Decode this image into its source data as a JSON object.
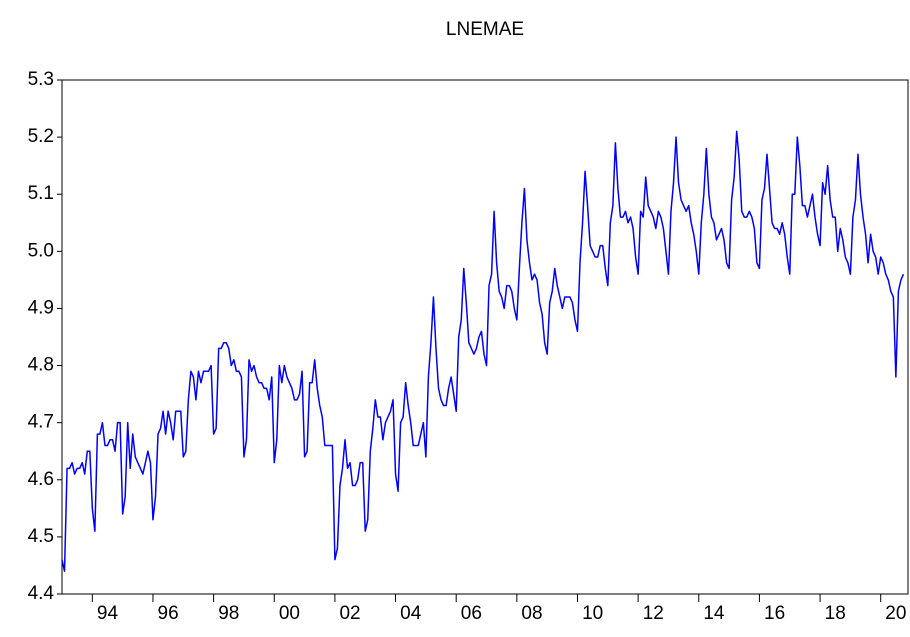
{
  "chart_data": {
    "type": "line",
    "title": "LNEMAE",
    "x": [
      1993,
      1993.083,
      1993.167,
      1993.25,
      1993.333,
      1993.417,
      1993.5,
      1993.583,
      1993.667,
      1993.75,
      1993.833,
      1993.917,
      1994,
      1994.083,
      1994.167,
      1994.25,
      1994.333,
      1994.417,
      1994.5,
      1994.583,
      1994.667,
      1994.75,
      1994.833,
      1994.917,
      1995,
      1995.083,
      1995.167,
      1995.25,
      1995.333,
      1995.417,
      1995.5,
      1995.583,
      1995.667,
      1995.75,
      1995.833,
      1995.917,
      1996,
      1996.083,
      1996.167,
      1996.25,
      1996.333,
      1996.417,
      1996.5,
      1996.583,
      1996.667,
      1996.75,
      1996.833,
      1996.917,
      1997,
      1997.083,
      1997.167,
      1997.25,
      1997.333,
      1997.417,
      1997.5,
      1997.583,
      1997.667,
      1997.75,
      1997.833,
      1997.917,
      1998,
      1998.083,
      1998.167,
      1998.25,
      1998.333,
      1998.417,
      1998.5,
      1998.583,
      1998.667,
      1998.75,
      1998.833,
      1998.917,
      1999,
      1999.083,
      1999.167,
      1999.25,
      1999.333,
      1999.417,
      1999.5,
      1999.583,
      1999.667,
      1999.75,
      1999.833,
      1999.917,
      2000,
      2000.083,
      2000.167,
      2000.25,
      2000.333,
      2000.417,
      2000.5,
      2000.583,
      2000.667,
      2000.75,
      2000.833,
      2000.917,
      2001,
      2001.083,
      2001.167,
      2001.25,
      2001.333,
      2001.417,
      2001.5,
      2001.583,
      2001.667,
      2001.75,
      2001.833,
      2001.917,
      2002,
      2002.083,
      2002.167,
      2002.25,
      2002.333,
      2002.417,
      2002.5,
      2002.583,
      2002.667,
      2002.75,
      2002.833,
      2002.917,
      2003,
      2003.083,
      2003.167,
      2003.25,
      2003.333,
      2003.417,
      2003.5,
      2003.583,
      2003.667,
      2003.75,
      2003.833,
      2003.917,
      2004,
      2004.083,
      2004.167,
      2004.25,
      2004.333,
      2004.417,
      2004.5,
      2004.583,
      2004.667,
      2004.75,
      2004.833,
      2004.917,
      2005,
      2005.083,
      2005.167,
      2005.25,
      2005.333,
      2005.417,
      2005.5,
      2005.583,
      2005.667,
      2005.75,
      2005.833,
      2005.917,
      2006,
      2006.083,
      2006.167,
      2006.25,
      2006.333,
      2006.417,
      2006.5,
      2006.583,
      2006.667,
      2006.75,
      2006.833,
      2006.917,
      2007,
      2007.083,
      2007.167,
      2007.25,
      2007.333,
      2007.417,
      2007.5,
      2007.583,
      2007.667,
      2007.75,
      2007.833,
      2007.917,
      2008,
      2008.083,
      2008.167,
      2008.25,
      2008.333,
      2008.417,
      2008.5,
      2008.583,
      2008.667,
      2008.75,
      2008.833,
      2008.917,
      2009,
      2009.083,
      2009.167,
      2009.25,
      2009.333,
      2009.417,
      2009.5,
      2009.583,
      2009.667,
      2009.75,
      2009.833,
      2009.917,
      2010,
      2010.083,
      2010.167,
      2010.25,
      2010.333,
      2010.417,
      2010.5,
      2010.583,
      2010.667,
      2010.75,
      2010.833,
      2010.917,
      2011,
      2011.083,
      2011.167,
      2011.25,
      2011.333,
      2011.417,
      2011.5,
      2011.583,
      2011.667,
      2011.75,
      2011.833,
      2011.917,
      2012,
      2012.083,
      2012.167,
      2012.25,
      2012.333,
      2012.417,
      2012.5,
      2012.583,
      2012.667,
      2012.75,
      2012.833,
      2012.917,
      2013,
      2013.083,
      2013.167,
      2013.25,
      2013.333,
      2013.417,
      2013.5,
      2013.583,
      2013.667,
      2013.75,
      2013.833,
      2013.917,
      2014,
      2014.083,
      2014.167,
      2014.25,
      2014.333,
      2014.417,
      2014.5,
      2014.583,
      2014.667,
      2014.75,
      2014.833,
      2014.917,
      2015,
      2015.083,
      2015.167,
      2015.25,
      2015.333,
      2015.417,
      2015.5,
      2015.583,
      2015.667,
      2015.75,
      2015.833,
      2015.917,
      2016,
      2016.083,
      2016.167,
      2016.25,
      2016.333,
      2016.417,
      2016.5,
      2016.583,
      2016.667,
      2016.75,
      2016.833,
      2016.917,
      2017,
      2017.083,
      2017.167,
      2017.25,
      2017.333,
      2017.417,
      2017.5,
      2017.583,
      2017.667,
      2017.75,
      2017.833,
      2017.917,
      2018,
      2018.083,
      2018.167,
      2018.25,
      2018.333,
      2018.417,
      2018.5,
      2018.583,
      2018.667,
      2018.75,
      2018.833,
      2018.917,
      2019,
      2019.083,
      2019.167,
      2019.25,
      2019.333,
      2019.417,
      2019.5,
      2019.583,
      2019.667,
      2019.75,
      2019.833,
      2019.917,
      2020,
      2020.083,
      2020.167,
      2020.25,
      2020.333,
      2020.417,
      2020.5,
      2020.583,
      2020.667,
      2020.75
    ],
    "series": [
      {
        "color": "#0000ff",
        "values": [
          4.46,
          4.44,
          4.62,
          4.62,
          4.63,
          4.61,
          4.62,
          4.62,
          4.63,
          4.61,
          4.65,
          4.65,
          4.55,
          4.51,
          4.68,
          4.68,
          4.7,
          4.66,
          4.66,
          4.67,
          4.67,
          4.65,
          4.7,
          4.7,
          4.54,
          4.57,
          4.7,
          4.62,
          4.68,
          4.64,
          4.63,
          4.62,
          4.61,
          4.63,
          4.65,
          4.63,
          4.53,
          4.57,
          4.68,
          4.69,
          4.72,
          4.68,
          4.72,
          4.7,
          4.67,
          4.72,
          4.72,
          4.72,
          4.64,
          4.65,
          4.74,
          4.79,
          4.78,
          4.74,
          4.79,
          4.77,
          4.79,
          4.79,
          4.79,
          4.8,
          4.68,
          4.69,
          4.83,
          4.83,
          4.84,
          4.84,
          4.83,
          4.8,
          4.81,
          4.79,
          4.79,
          4.78,
          4.64,
          4.67,
          4.81,
          4.79,
          4.8,
          4.78,
          4.77,
          4.77,
          4.76,
          4.76,
          4.74,
          4.78,
          4.63,
          4.67,
          4.8,
          4.77,
          4.8,
          4.78,
          4.77,
          4.76,
          4.74,
          4.74,
          4.75,
          4.79,
          4.64,
          4.65,
          4.77,
          4.77,
          4.81,
          4.76,
          4.73,
          4.71,
          4.66,
          4.66,
          4.66,
          4.66,
          4.46,
          4.48,
          4.59,
          4.62,
          4.67,
          4.62,
          4.63,
          4.59,
          4.59,
          4.6,
          4.63,
          4.63,
          4.51,
          4.53,
          4.65,
          4.69,
          4.74,
          4.71,
          4.71,
          4.67,
          4.7,
          4.71,
          4.72,
          4.74,
          4.61,
          4.58,
          4.7,
          4.71,
          4.77,
          4.73,
          4.7,
          4.66,
          4.66,
          4.66,
          4.68,
          4.7,
          4.64,
          4.78,
          4.84,
          4.92,
          4.83,
          4.76,
          4.74,
          4.73,
          4.73,
          4.76,
          4.78,
          4.75,
          4.72,
          4.85,
          4.88,
          4.97,
          4.91,
          4.84,
          4.83,
          4.82,
          4.83,
          4.85,
          4.86,
          4.82,
          4.8,
          4.94,
          4.96,
          5.07,
          4.98,
          4.93,
          4.92,
          4.9,
          4.94,
          4.94,
          4.93,
          4.9,
          4.88,
          4.97,
          5.05,
          5.11,
          5.02,
          4.98,
          4.95,
          4.96,
          4.95,
          4.91,
          4.89,
          4.84,
          4.82,
          4.91,
          4.93,
          4.97,
          4.94,
          4.92,
          4.9,
          4.92,
          4.92,
          4.92,
          4.91,
          4.88,
          4.86,
          4.98,
          5.05,
          5.14,
          5.08,
          5.01,
          5.0,
          4.99,
          4.99,
          5.01,
          5.01,
          4.97,
          4.94,
          5.05,
          5.08,
          5.19,
          5.11,
          5.06,
          5.06,
          5.07,
          5.05,
          5.06,
          5.04,
          4.99,
          4.96,
          5.07,
          5.06,
          5.13,
          5.08,
          5.07,
          5.06,
          5.04,
          5.07,
          5.06,
          5.04,
          5.0,
          4.96,
          5.07,
          5.12,
          5.2,
          5.12,
          5.09,
          5.08,
          5.07,
          5.08,
          5.05,
          5.03,
          5.0,
          4.96,
          5.05,
          5.1,
          5.18,
          5.1,
          5.06,
          5.05,
          5.02,
          5.03,
          5.04,
          5.02,
          4.98,
          4.97,
          5.09,
          5.13,
          5.21,
          5.16,
          5.07,
          5.06,
          5.06,
          5.07,
          5.06,
          5.04,
          4.98,
          4.97,
          5.09,
          5.11,
          5.17,
          5.11,
          5.05,
          5.04,
          5.04,
          5.03,
          5.05,
          5.03,
          4.99,
          4.96,
          5.1,
          5.1,
          5.2,
          5.15,
          5.08,
          5.08,
          5.06,
          5.08,
          5.1,
          5.06,
          5.03,
          5.01,
          5.12,
          5.1,
          5.15,
          5.09,
          5.06,
          5.06,
          5.0,
          5.04,
          5.02,
          4.99,
          4.98,
          4.96,
          5.06,
          5.09,
          5.17,
          5.1,
          5.06,
          5.03,
          4.98,
          5.03,
          5.0,
          4.99,
          4.96,
          4.99,
          4.98,
          4.96,
          4.95,
          4.93,
          4.92,
          4.78,
          4.93,
          4.95,
          4.96
        ]
      }
    ],
    "xlim": [
      1993,
      2020.9
    ],
    "xticks": [
      {
        "value": 1994,
        "label": "94"
      },
      {
        "value": 1996,
        "label": "96"
      },
      {
        "value": 1998,
        "label": "98"
      },
      {
        "value": 2000,
        "label": "00"
      },
      {
        "value": 2002,
        "label": "02"
      },
      {
        "value": 2004,
        "label": "04"
      },
      {
        "value": 2006,
        "label": "06"
      },
      {
        "value": 2008,
        "label": "08"
      },
      {
        "value": 2010,
        "label": "10"
      },
      {
        "value": 2012,
        "label": "12"
      },
      {
        "value": 2014,
        "label": "14"
      },
      {
        "value": 2016,
        "label": "16"
      },
      {
        "value": 2018,
        "label": "18"
      },
      {
        "value": 2020,
        "label": "20"
      }
    ],
    "ylim": [
      4.4,
      5.3
    ],
    "yticks": [
      4.4,
      4.5,
      4.6,
      4.7,
      4.8,
      4.9,
      {
        "value": 5,
        "label": "5.0"
      },
      5.1,
      5.2,
      5.3
    ],
    "grid": false
  }
}
